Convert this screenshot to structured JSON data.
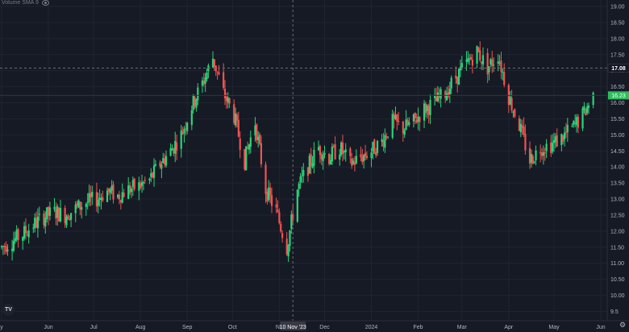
{
  "legend": {
    "label": "Volume SMA 9",
    "icon": "eye-icon"
  },
  "logo": "TV",
  "settings_icon": "gear-icon",
  "crosshair": {
    "price_label": "17.08",
    "date_label": "10 Nov '23",
    "price": 17.08,
    "date": "2023-11-10"
  },
  "last_price": {
    "label": "16.23",
    "value": 16.23
  },
  "colors": {
    "background": "#161a25",
    "up": "#26a69a",
    "up_bright": "#2bd47a",
    "down": "#ef5350",
    "text": "#b2b5be",
    "last_price_bg": "#2ebd5f"
  },
  "chart_data": {
    "type": "candlestick",
    "x_tick_labels": [
      "y",
      "Jun",
      "Jul",
      "Aug",
      "Sep",
      "Oct",
      "No",
      "Dec",
      "2024",
      "Feb",
      "Mar",
      "Apr",
      "May",
      "Jun"
    ],
    "x_tick_dates": [
      "2023-05-01",
      "2023-06-01",
      "2023-07-01",
      "2023-08-01",
      "2023-09-01",
      "2023-10-01",
      "2023-11-01",
      "2023-12-01",
      "2024-01-01",
      "2024-02-01",
      "2024-03-01",
      "2024-04-01",
      "2024-05-01",
      "2024-06-01"
    ],
    "y_ticks": [
      "19.00",
      "18.50",
      "18.00",
      "17.50",
      "17.00",
      "16.50",
      "16.00",
      "15.50",
      "15.00",
      "14.50",
      "14.00",
      "13.50",
      "13.00",
      "12.50",
      "12.00",
      "11.50",
      "11.00",
      "10.50",
      "10.00",
      "9.5"
    ],
    "ylim": [
      9.45,
      19.2
    ],
    "closes": [
      [
        "2023-05-01",
        11.5
      ],
      [
        "2023-05-08",
        11.7
      ],
      [
        "2023-05-15",
        11.9
      ],
      [
        "2023-05-22",
        12.2
      ],
      [
        "2023-05-29",
        12.45
      ],
      [
        "2023-06-05",
        12.6
      ],
      [
        "2023-06-12",
        12.5
      ],
      [
        "2023-06-19",
        12.7
      ],
      [
        "2023-06-26",
        12.9
      ],
      [
        "2023-07-03",
        13.0
      ],
      [
        "2023-07-10",
        13.25
      ],
      [
        "2023-07-17",
        13.1
      ],
      [
        "2023-07-24",
        13.3
      ],
      [
        "2023-07-31",
        13.4
      ],
      [
        "2023-08-07",
        13.6
      ],
      [
        "2023-08-14",
        14.1
      ],
      [
        "2023-08-21",
        14.5
      ],
      [
        "2023-08-28",
        15.0
      ],
      [
        "2023-09-04",
        15.9
      ],
      [
        "2023-09-11",
        16.6
      ],
      [
        "2023-09-18",
        17.4
      ],
      [
        "2023-09-25",
        16.3
      ],
      [
        "2023-10-02",
        15.6
      ],
      [
        "2023-10-09",
        14.2
      ],
      [
        "2023-10-16",
        15.4
      ],
      [
        "2023-10-23",
        13.3
      ],
      [
        "2023-10-30",
        12.6
      ],
      [
        "2023-11-06",
        11.5
      ],
      [
        "2023-11-13",
        13.3
      ],
      [
        "2023-11-20",
        14.0
      ],
      [
        "2023-11-27",
        14.6
      ],
      [
        "2023-12-04",
        14.3
      ],
      [
        "2023-12-11",
        14.6
      ],
      [
        "2023-12-18",
        14.1
      ],
      [
        "2023-12-25",
        14.3
      ],
      [
        "2024-01-01",
        14.5
      ],
      [
        "2024-01-08",
        14.8
      ],
      [
        "2024-01-15",
        15.4
      ],
      [
        "2024-01-22",
        15.2
      ],
      [
        "2024-01-29",
        15.4
      ],
      [
        "2024-02-05",
        15.8
      ],
      [
        "2024-02-12",
        16.0
      ],
      [
        "2024-02-19",
        16.3
      ],
      [
        "2024-02-26",
        16.8
      ],
      [
        "2024-03-04",
        17.2
      ],
      [
        "2024-03-11",
        17.6
      ],
      [
        "2024-03-18",
        17.1
      ],
      [
        "2024-03-25",
        17.5
      ],
      [
        "2024-04-01",
        16.2
      ],
      [
        "2024-04-08",
        15.3
      ],
      [
        "2024-04-15",
        14.2
      ],
      [
        "2024-04-22",
        14.6
      ],
      [
        "2024-04-29",
        14.7
      ],
      [
        "2024-05-06",
        14.9
      ],
      [
        "2024-05-13",
        15.2
      ],
      [
        "2024-05-20",
        15.6
      ],
      [
        "2024-05-27",
        16.23
      ]
    ]
  }
}
